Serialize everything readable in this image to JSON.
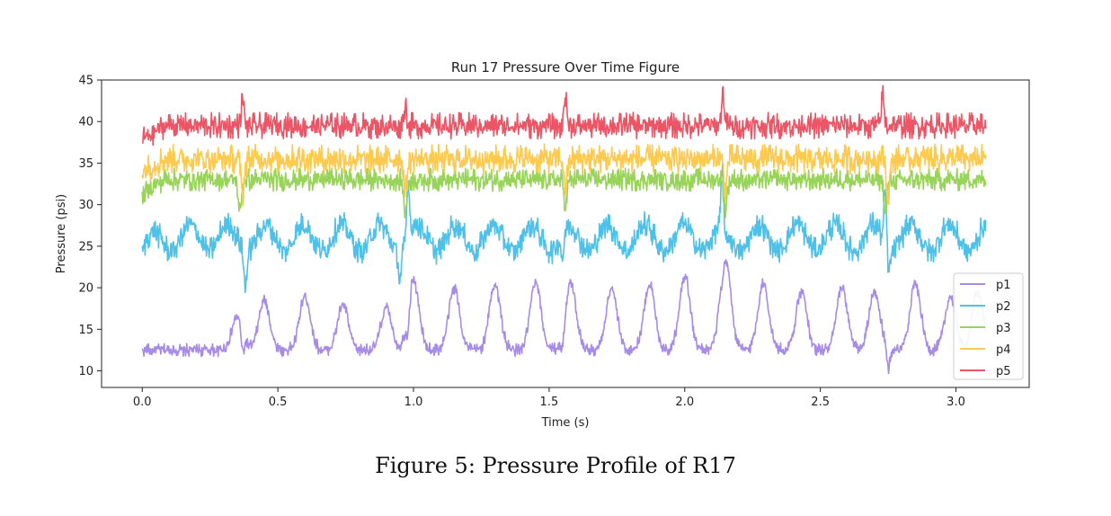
{
  "chart_data": {
    "type": "line",
    "title": "Run 17 Pressure Over Time Figure",
    "xlabel": "Time (s)",
    "ylabel": "Pressure (psi)",
    "xlim": [
      -0.15,
      3.27
    ],
    "ylim": [
      8,
      45
    ],
    "xticks": [
      0.0,
      0.5,
      1.0,
      1.5,
      2.0,
      2.5,
      3.0
    ],
    "xtick_labels": [
      "0.0",
      "0.5",
      "1.0",
      "1.5",
      "2.0",
      "2.5",
      "3.0"
    ],
    "yticks": [
      10,
      15,
      20,
      25,
      30,
      35,
      40,
      45
    ],
    "ytick_labels": [
      "10",
      "15",
      "20",
      "25",
      "30",
      "35",
      "40",
      "45"
    ],
    "grid": false,
    "legend_position": "lower-right",
    "duration_s": 3.11,
    "series": [
      {
        "name": "p1",
        "color": "#a78be8",
        "baseline": 12.5,
        "noise": 0.4,
        "pulses": [
          [
            0.35,
            16.5
          ],
          [
            0.45,
            18.5
          ],
          [
            0.6,
            19.0
          ],
          [
            0.74,
            18.0
          ],
          [
            0.9,
            17.5
          ],
          [
            1.0,
            21.0
          ],
          [
            1.15,
            20.0
          ],
          [
            1.3,
            20.5
          ],
          [
            1.45,
            20.5
          ],
          [
            1.58,
            20.5
          ],
          [
            1.73,
            20.0
          ],
          [
            1.87,
            20.5
          ],
          [
            2.0,
            21.5
          ],
          [
            2.15,
            23.5
          ],
          [
            2.29,
            20.5
          ],
          [
            2.43,
            19.5
          ],
          [
            2.58,
            20.0
          ],
          [
            2.7,
            19.5
          ],
          [
            2.85,
            20.5
          ],
          [
            2.98,
            19.0
          ],
          [
            3.08,
            19.5
          ]
        ],
        "dips": [
          [
            0.37,
            10.0
          ],
          [
            0.98,
            9.8
          ],
          [
            1.55,
            10.5
          ],
          [
            2.14,
            11.0
          ],
          [
            2.75,
            10.0
          ]
        ]
      },
      {
        "name": "p2",
        "color": "#4fc1e8",
        "baseline": 26.0,
        "noise": 0.8,
        "wave_amp": 1.6,
        "wave_period": 0.14,
        "dips": [
          [
            0.38,
            21.8
          ],
          [
            0.95,
            22.5
          ],
          [
            1.55,
            23.0
          ],
          [
            2.15,
            23.5
          ],
          [
            2.75,
            22.5
          ]
        ],
        "spikes": [
          [
            0.98,
            33.0
          ],
          [
            2.14,
            33.5
          ],
          [
            2.74,
            33.0
          ]
        ]
      },
      {
        "name": "p3",
        "color": "#99d45a",
        "baseline": 33.0,
        "noise": 0.7,
        "dips": [
          [
            0.36,
            29.0
          ],
          [
            0.97,
            29.0
          ],
          [
            1.56,
            30.0
          ],
          [
            2.15,
            29.5
          ],
          [
            2.74,
            29.0
          ]
        ]
      },
      {
        "name": "p4",
        "color": "#fdc94e",
        "baseline": 35.5,
        "noise": 0.9,
        "dips": [
          [
            0.37,
            31.0
          ],
          [
            0.97,
            31.5
          ],
          [
            1.56,
            32.0
          ],
          [
            2.15,
            32.0
          ],
          [
            2.75,
            31.0
          ]
        ]
      },
      {
        "name": "p5",
        "color": "#ec5565",
        "baseline": 39.5,
        "noise": 0.8,
        "spikes": [
          [
            0.37,
            42.7
          ],
          [
            0.97,
            42.0
          ],
          [
            1.56,
            43.5
          ],
          [
            2.14,
            43.6
          ],
          [
            2.73,
            43.0
          ]
        ]
      }
    ]
  },
  "caption": "Figure 5:  Pressure Profile of R17"
}
